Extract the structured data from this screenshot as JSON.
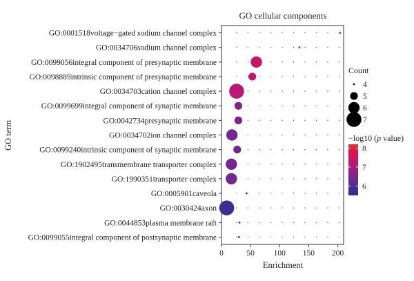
{
  "chart_data": {
    "type": "scatter",
    "title": "GO cellular components",
    "xlabel": "Enrichment",
    "ylabel": "GO term",
    "xlim": [
      0,
      210
    ],
    "xticks": [
      0,
      50,
      100,
      150,
      200
    ],
    "grid": "dotted",
    "terms": [
      "GO:0001518voltage−gated sodium channel complex",
      "GO:0034706sodium channel complex",
      "GO:0099056integral component of presynaptic membrane",
      "GO:0098889intrinsic component of presynaptic membrane",
      "GO:0034703cation channel complex",
      "GO:0099699integral component of synaptic membrane",
      "GO:0042734presynaptic membrane",
      "GO:0034702ion channel complex",
      "GO:0099240intrinsic component of synaptic membrane",
      "GO:1902495transmembrane transporter complex",
      "GO:1990351transporter complex",
      "GO:0005901caveola",
      "GO:0030424axon",
      "GO:0044853plasma membrane raft",
      "GO:0099055integral component of postsynaptic membrane"
    ],
    "enrichment": [
      204,
      134,
      60,
      53,
      26,
      29,
      29,
      18,
      27,
      17,
      17,
      43,
      9,
      31,
      30
    ],
    "count": [
      4,
      4,
      6,
      5,
      7,
      5,
      5,
      6,
      5,
      6,
      6,
      4,
      7,
      4,
      4
    ],
    "neg_log10_p": [
      8.1,
      7.8,
      7.4,
      7.3,
      7.2,
      6.6,
      6.5,
      6.4,
      6.4,
      6.4,
      6.4,
      5.9,
      5.7,
      5.8,
      5.8
    ],
    "size_legend": {
      "title": "Count",
      "values": [
        4,
        5,
        6,
        7
      ],
      "labels": [
        "4",
        "5",
        "6",
        "7"
      ]
    },
    "color_legend": {
      "title_prefix": "−log10 (",
      "title_italic": "p",
      "title_suffix": " value)",
      "ticks": [
        8,
        7,
        6
      ],
      "tick_labels": [
        "8",
        "7",
        "6"
      ],
      "range": [
        5.5,
        8.2
      ],
      "colors": [
        "#2b2f8f",
        "#6a2a92",
        "#b4187a",
        "#e0144c",
        "#d63a2c"
      ]
    }
  }
}
